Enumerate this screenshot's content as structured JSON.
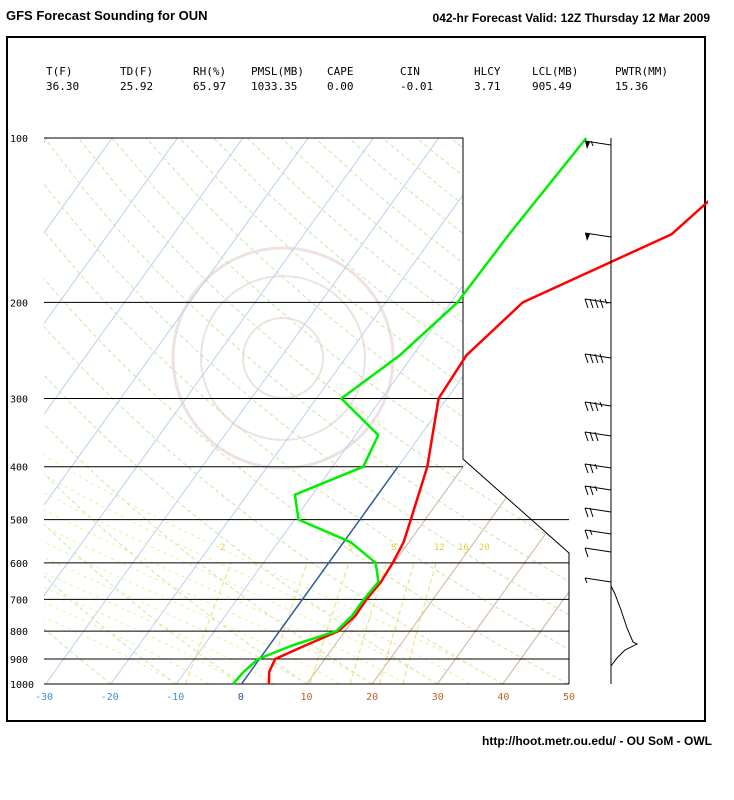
{
  "header": {
    "title": "GFS Forecast Sounding for OUN",
    "valid": "042-hr Forecast Valid: 12Z Thursday 12 Mar 2009"
  },
  "stats": [
    {
      "label": "T(F)",
      "value": "36.30"
    },
    {
      "label": "TD(F)",
      "value": "25.92"
    },
    {
      "label": "RH(%)",
      "value": "65.97"
    },
    {
      "label": "PMSL(MB)",
      "value": "1033.35"
    },
    {
      "label": "CAPE",
      "value": "0.00"
    },
    {
      "label": "CIN",
      "value": "-0.01"
    },
    {
      "label": "HLCY",
      "value": "3.71"
    },
    {
      "label": "LCL(MB)",
      "value": "905.49"
    },
    {
      "label": "PWTR(MM)",
      "value": "15.36"
    }
  ],
  "footer": "http://hoot.metr.ou.edu/ - OU SoM - OWL",
  "chart_data": {
    "type": "line",
    "y_axis_pressure_mb": [
      100,
      200,
      300,
      400,
      500,
      600,
      700,
      800,
      900,
      1000
    ],
    "y_tick_labels": [
      "100",
      "200",
      "300",
      "400",
      "500",
      "600",
      "700",
      "800",
      "900",
      "1000"
    ],
    "x_tick_labels": [
      "-30",
      "-20",
      "-10",
      "0",
      "10",
      "20",
      "30",
      "40",
      "50"
    ],
    "xlim": [
      -30,
      50
    ],
    "mixing_ratio_labels": [
      "2",
      "5",
      "8",
      "12",
      "16",
      "20"
    ],
    "grid": true,
    "series": [
      {
        "color": "#ff0000",
        "p": [
          100,
          150,
          200,
          250,
          300,
          400,
          500,
          550,
          600,
          650,
          700,
          750,
          800,
          850,
          900,
          950,
          1000
        ],
        "x": [
          22.1,
          16.3,
          1.0,
          -1.8,
          -1.3,
          4.5,
          7.8,
          9.2,
          9.8,
          10.1,
          9.8,
          9.9,
          9.0,
          5.5,
          2.4,
          2.9,
          4.2
        ]
      },
      {
        "color": "#00ee00",
        "p": [
          100,
          150,
          200,
          250,
          300,
          350,
          400,
          450,
          500,
          550,
          600,
          650,
          700,
          750,
          800,
          850,
          900,
          950,
          1000
        ],
        "x": [
          -7.4,
          -8.6,
          -9.0,
          -12.0,
          -16.2,
          -6.5,
          -5.3,
          -12.7,
          -9.4,
          1.1,
          7.2,
          9.7,
          9.4,
          9.4,
          8.7,
          3.5,
          -0.2,
          -1.0,
          -1.3
        ]
      }
    ],
    "wind_barb_speeds_kt": [
      55,
      50,
      45,
      40,
      35,
      30,
      25,
      25,
      20,
      15,
      10,
      5
    ]
  }
}
